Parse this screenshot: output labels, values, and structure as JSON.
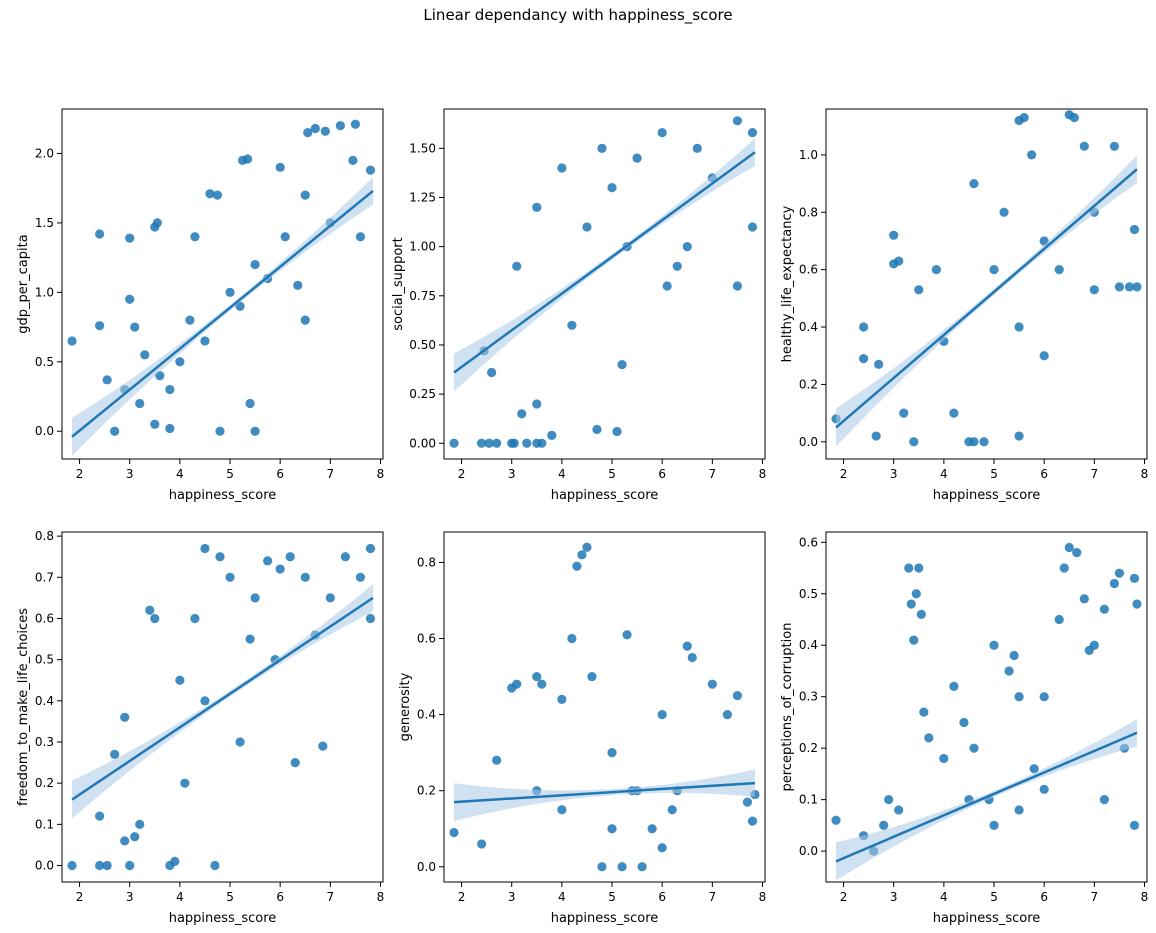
{
  "figure": {
    "title": "Linear dependancy with happiness_score"
  },
  "colors": {
    "point": "#1f77b4",
    "line": "#1f77b4",
    "band": "#a9c8e6",
    "axis": "#000000"
  },
  "chart_data": [
    {
      "type": "scatter",
      "xlabel": "happiness_score",
      "ylabel": "gdp_per_capita",
      "xlim": [
        1.65,
        8.05
      ],
      "ylim": [
        -0.2,
        2.32
      ],
      "xticks": [
        2,
        3,
        4,
        5,
        6,
        7,
        8
      ],
      "yticks": [
        "0.0",
        "0.5",
        "1.0",
        "1.5",
        "2.0"
      ],
      "regression": {
        "x": [
          1.85,
          7.85
        ],
        "y": [
          -0.04,
          1.73
        ]
      },
      "points": [
        [
          1.85,
          0.65
        ],
        [
          2.4,
          1.42
        ],
        [
          2.4,
          0.76
        ],
        [
          2.55,
          0.37
        ],
        [
          2.7,
          0.0
        ],
        [
          2.9,
          0.3
        ],
        [
          3.0,
          1.39
        ],
        [
          3.0,
          0.95
        ],
        [
          3.1,
          0.75
        ],
        [
          3.2,
          0.2
        ],
        [
          3.3,
          0.55
        ],
        [
          3.5,
          1.47
        ],
        [
          3.55,
          1.5
        ],
        [
          3.5,
          0.05
        ],
        [
          3.6,
          0.4
        ],
        [
          3.8,
          0.3
        ],
        [
          3.8,
          0.02
        ],
        [
          4.0,
          0.5
        ],
        [
          4.2,
          0.8
        ],
        [
          4.3,
          1.4
        ],
        [
          4.5,
          0.65
        ],
        [
          4.6,
          1.71
        ],
        [
          4.75,
          1.7
        ],
        [
          4.8,
          0.0
        ],
        [
          5.0,
          1.0
        ],
        [
          5.2,
          0.9
        ],
        [
          5.25,
          1.95
        ],
        [
          5.35,
          1.96
        ],
        [
          5.4,
          0.2
        ],
        [
          5.5,
          1.2
        ],
        [
          5.5,
          0.0
        ],
        [
          5.75,
          1.1
        ],
        [
          6.0,
          1.9
        ],
        [
          6.1,
          1.4
        ],
        [
          6.35,
          1.05
        ],
        [
          6.5,
          1.7
        ],
        [
          6.5,
          0.8
        ],
        [
          6.55,
          2.15
        ],
        [
          6.7,
          2.18
        ],
        [
          6.9,
          2.16
        ],
        [
          7.0,
          1.5
        ],
        [
          7.2,
          2.2
        ],
        [
          7.45,
          1.95
        ],
        [
          7.5,
          2.21
        ],
        [
          7.6,
          1.4
        ],
        [
          7.8,
          1.88
        ]
      ]
    },
    {
      "type": "scatter",
      "xlabel": "happiness_score",
      "ylabel": "social_support",
      "xlim": [
        1.65,
        8.05
      ],
      "ylim": [
        -0.08,
        1.7
      ],
      "xticks": [
        2,
        3,
        4,
        5,
        6,
        7,
        8
      ],
      "yticks": [
        "0.00",
        "0.25",
        "0.50",
        "0.75",
        "1.00",
        "1.25",
        "1.50"
      ],
      "regression": {
        "x": [
          1.85,
          7.85
        ],
        "y": [
          0.36,
          1.48
        ]
      },
      "points": [
        [
          1.85,
          0.0
        ],
        [
          2.4,
          0.0
        ],
        [
          2.55,
          0.0
        ],
        [
          2.7,
          0.0
        ],
        [
          2.45,
          0.47
        ],
        [
          2.6,
          0.36
        ],
        [
          3.0,
          0.0
        ],
        [
          3.05,
          0.0
        ],
        [
          3.3,
          0.0
        ],
        [
          3.5,
          0.0
        ],
        [
          3.6,
          0.0
        ],
        [
          3.8,
          0.04
        ],
        [
          3.2,
          0.15
        ],
        [
          3.5,
          0.2
        ],
        [
          3.1,
          0.9
        ],
        [
          3.5,
          1.2
        ],
        [
          4.0,
          1.4
        ],
        [
          4.2,
          0.6
        ],
        [
          4.7,
          0.07
        ],
        [
          5.1,
          0.06
        ],
        [
          5.5,
          1.45
        ],
        [
          5.2,
          0.4
        ],
        [
          6.0,
          1.58
        ],
        [
          6.1,
          0.8
        ],
        [
          6.5,
          1.0
        ],
        [
          6.7,
          1.5
        ],
        [
          7.0,
          1.35
        ],
        [
          7.5,
          1.64
        ],
        [
          7.8,
          1.58
        ],
        [
          7.8,
          1.1
        ],
        [
          7.5,
          0.8
        ],
        [
          4.5,
          1.1
        ],
        [
          5.0,
          1.3
        ],
        [
          4.8,
          1.5
        ],
        [
          5.3,
          1.0
        ],
        [
          6.3,
          0.9
        ]
      ]
    },
    {
      "type": "scatter",
      "xlabel": "happiness_score",
      "ylabel": "healthy_life_expectancy",
      "xlim": [
        1.65,
        8.05
      ],
      "ylim": [
        -0.06,
        1.16
      ],
      "xticks": [
        2,
        3,
        4,
        5,
        6,
        7,
        8
      ],
      "yticks": [
        "0.0",
        "0.2",
        "0.4",
        "0.6",
        "0.8",
        "1.0"
      ],
      "regression": {
        "x": [
          1.85,
          7.85
        ],
        "y": [
          0.05,
          0.95
        ]
      },
      "points": [
        [
          1.85,
          0.08
        ],
        [
          2.4,
          0.4
        ],
        [
          2.4,
          0.29
        ],
        [
          2.65,
          0.02
        ],
        [
          2.7,
          0.27
        ],
        [
          3.0,
          0.72
        ],
        [
          3.0,
          0.62
        ],
        [
          3.1,
          0.63
        ],
        [
          3.2,
          0.1
        ],
        [
          3.4,
          0.0
        ],
        [
          3.5,
          0.53
        ],
        [
          3.85,
          0.6
        ],
        [
          4.0,
          0.35
        ],
        [
          4.2,
          0.1
        ],
        [
          4.5,
          0.0
        ],
        [
          4.6,
          0.0
        ],
        [
          4.8,
          0.0
        ],
        [
          4.6,
          0.9
        ],
        [
          5.0,
          0.6
        ],
        [
          5.2,
          0.8
        ],
        [
          5.5,
          0.02
        ],
        [
          5.5,
          1.12
        ],
        [
          5.6,
          1.13
        ],
        [
          5.5,
          0.4
        ],
        [
          5.75,
          1.0
        ],
        [
          6.0,
          0.3
        ],
        [
          6.0,
          0.7
        ],
        [
          6.3,
          0.6
        ],
        [
          6.5,
          1.14
        ],
        [
          6.6,
          1.13
        ],
        [
          6.8,
          1.03
        ],
        [
          7.0,
          0.8
        ],
        [
          7.0,
          0.53
        ],
        [
          7.4,
          1.03
        ],
        [
          7.5,
          0.54
        ],
        [
          7.7,
          0.54
        ],
        [
          7.8,
          0.74
        ],
        [
          7.85,
          0.54
        ]
      ]
    },
    {
      "type": "scatter",
      "xlabel": "happiness_score",
      "ylabel": "freedom_to_make_life_choices",
      "xlim": [
        1.65,
        8.05
      ],
      "ylim": [
        -0.04,
        0.81
      ],
      "xticks": [
        2,
        3,
        4,
        5,
        6,
        7,
        8
      ],
      "yticks": [
        "0.0",
        "0.1",
        "0.2",
        "0.3",
        "0.4",
        "0.5",
        "0.6",
        "0.7",
        "0.8"
      ],
      "regression": {
        "x": [
          1.85,
          7.85
        ],
        "y": [
          0.16,
          0.65
        ]
      },
      "points": [
        [
          1.85,
          0.0
        ],
        [
          2.4,
          0.12
        ],
        [
          2.4,
          0.0
        ],
        [
          2.55,
          0.0
        ],
        [
          2.7,
          0.27
        ],
        [
          2.9,
          0.36
        ],
        [
          2.9,
          0.06
        ],
        [
          3.0,
          0.0
        ],
        [
          3.1,
          0.07
        ],
        [
          3.2,
          0.1
        ],
        [
          3.4,
          0.62
        ],
        [
          3.5,
          0.6
        ],
        [
          3.8,
          0.0
        ],
        [
          3.9,
          0.01
        ],
        [
          4.0,
          0.45
        ],
        [
          4.3,
          0.6
        ],
        [
          4.5,
          0.77
        ],
        [
          4.7,
          0.0
        ],
        [
          4.8,
          0.75
        ],
        [
          5.0,
          0.7
        ],
        [
          5.2,
          0.3
        ],
        [
          5.5,
          0.65
        ],
        [
          5.75,
          0.74
        ],
        [
          6.0,
          0.72
        ],
        [
          6.2,
          0.75
        ],
        [
          6.3,
          0.25
        ],
        [
          6.5,
          0.7
        ],
        [
          6.7,
          0.56
        ],
        [
          6.85,
          0.29
        ],
        [
          7.0,
          0.65
        ],
        [
          7.3,
          0.75
        ],
        [
          7.6,
          0.7
        ],
        [
          7.8,
          0.77
        ],
        [
          7.8,
          0.6
        ],
        [
          4.1,
          0.2
        ],
        [
          4.5,
          0.4
        ],
        [
          5.4,
          0.55
        ],
        [
          5.9,
          0.5
        ]
      ]
    },
    {
      "type": "scatter",
      "xlabel": "happiness_score",
      "ylabel": "generosity",
      "xlim": [
        1.65,
        8.05
      ],
      "ylim": [
        -0.04,
        0.88
      ],
      "xticks": [
        2,
        3,
        4,
        5,
        6,
        7,
        8
      ],
      "yticks": [
        "0.0",
        "0.2",
        "0.4",
        "0.6",
        "0.8"
      ],
      "regression": {
        "x": [
          1.85,
          7.85
        ],
        "y": [
          0.17,
          0.22
        ]
      },
      "points": [
        [
          1.85,
          0.09
        ],
        [
          2.4,
          0.06
        ],
        [
          2.7,
          0.28
        ],
        [
          3.0,
          0.47
        ],
        [
          3.1,
          0.48
        ],
        [
          3.5,
          0.5
        ],
        [
          3.6,
          0.48
        ],
        [
          4.0,
          0.44
        ],
        [
          4.2,
          0.6
        ],
        [
          4.3,
          0.79
        ],
        [
          4.4,
          0.82
        ],
        [
          4.5,
          0.84
        ],
        [
          4.6,
          0.5
        ],
        [
          5.0,
          0.3
        ],
        [
          5.2,
          0.0
        ],
        [
          5.3,
          0.61
        ],
        [
          5.5,
          0.2
        ],
        [
          5.8,
          0.1
        ],
        [
          6.0,
          0.4
        ],
        [
          6.2,
          0.15
        ],
        [
          6.5,
          0.58
        ],
        [
          6.6,
          0.55
        ],
        [
          7.0,
          0.48
        ],
        [
          7.3,
          0.4
        ],
        [
          7.5,
          0.45
        ],
        [
          7.7,
          0.17
        ],
        [
          7.8,
          0.12
        ],
        [
          7.85,
          0.19
        ],
        [
          4.8,
          0.0
        ],
        [
          5.0,
          0.1
        ],
        [
          5.6,
          0.0
        ],
        [
          6.0,
          0.05
        ],
        [
          3.5,
          0.2
        ],
        [
          4.0,
          0.15
        ],
        [
          5.4,
          0.2
        ],
        [
          6.3,
          0.2
        ]
      ]
    },
    {
      "type": "scatter",
      "xlabel": "happiness_score",
      "ylabel": "perceptions_of_corruption",
      "xlim": [
        1.65,
        8.05
      ],
      "ylim": [
        -0.06,
        0.62
      ],
      "xticks": [
        2,
        3,
        4,
        5,
        6,
        7,
        8
      ],
      "yticks": [
        "0.0",
        "0.1",
        "0.2",
        "0.3",
        "0.4",
        "0.5",
        "0.6"
      ],
      "regression": {
        "x": [
          1.85,
          7.85
        ],
        "y": [
          -0.02,
          0.23
        ]
      },
      "points": [
        [
          1.85,
          0.06
        ],
        [
          2.4,
          0.03
        ],
        [
          2.6,
          0.0
        ],
        [
          2.8,
          0.05
        ],
        [
          2.9,
          0.1
        ],
        [
          3.1,
          0.08
        ],
        [
          3.3,
          0.55
        ],
        [
          3.35,
          0.48
        ],
        [
          3.4,
          0.41
        ],
        [
          3.45,
          0.5
        ],
        [
          3.5,
          0.55
        ],
        [
          3.55,
          0.46
        ],
        [
          3.6,
          0.27
        ],
        [
          3.7,
          0.22
        ],
        [
          4.0,
          0.18
        ],
        [
          4.2,
          0.32
        ],
        [
          4.4,
          0.25
        ],
        [
          4.6,
          0.2
        ],
        [
          4.9,
          0.1
        ],
        [
          5.0,
          0.4
        ],
        [
          5.3,
          0.35
        ],
        [
          5.4,
          0.38
        ],
        [
          5.5,
          0.3
        ],
        [
          5.8,
          0.16
        ],
        [
          6.0,
          0.3
        ],
        [
          6.3,
          0.45
        ],
        [
          6.4,
          0.55
        ],
        [
          6.5,
          0.59
        ],
        [
          6.65,
          0.58
        ],
        [
          6.8,
          0.49
        ],
        [
          6.9,
          0.39
        ],
        [
          7.0,
          0.4
        ],
        [
          7.2,
          0.47
        ],
        [
          7.4,
          0.52
        ],
        [
          7.5,
          0.54
        ],
        [
          7.8,
          0.53
        ],
        [
          7.85,
          0.48
        ],
        [
          7.6,
          0.2
        ],
        [
          7.8,
          0.05
        ],
        [
          4.5,
          0.1
        ],
        [
          5.0,
          0.05
        ],
        [
          5.5,
          0.08
        ],
        [
          6.0,
          0.12
        ],
        [
          7.2,
          0.1
        ]
      ]
    }
  ]
}
